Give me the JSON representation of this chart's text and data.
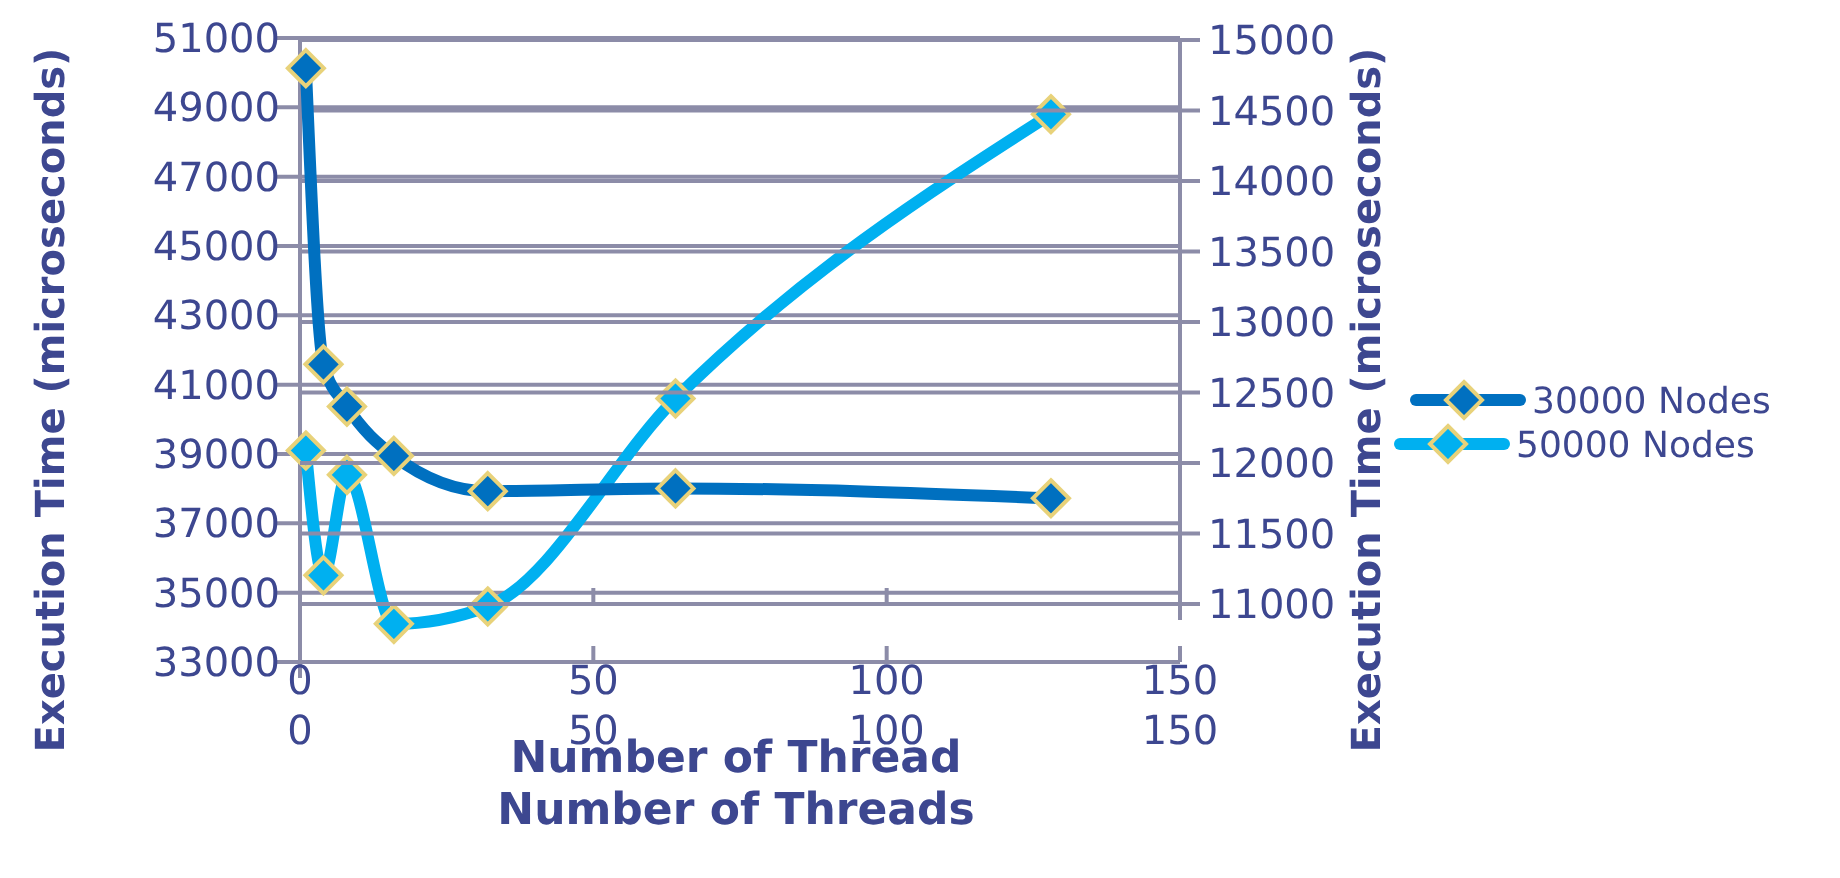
{
  "chart_data": [
    {
      "type": "line",
      "xlabel": "Number of Threads",
      "ylabel": "Execution Time (microseconds)",
      "x": [
        1,
        4,
        8,
        16,
        32,
        64,
        128
      ],
      "series": [
        {
          "name": "50000 Nodes",
          "color": "#00b0f0",
          "values": [
            39100,
            35500,
            38400,
            34100,
            34600,
            40600,
            48800
          ]
        }
      ],
      "xlim": [
        0,
        150
      ],
      "xticks": [
        0,
        50,
        100,
        150
      ],
      "ylim": [
        33000,
        51000
      ],
      "yticks": [
        33000,
        35000,
        37000,
        39000,
        41000,
        43000,
        45000,
        47000,
        49000,
        51000
      ],
      "grid": "y",
      "legend": "right",
      "marker": "diamond"
    },
    {
      "type": "line",
      "xlabel": "Number of Thread",
      "ylabel": "Execution Time (microseconds)",
      "x": [
        1,
        4,
        8,
        16,
        32,
        64,
        128
      ],
      "series": [
        {
          "name": "30000 Nodes",
          "color": "#0070c0",
          "values": [
            14800,
            12700,
            12400,
            12050,
            11800,
            11820,
            11750
          ]
        }
      ],
      "xlim": [
        0,
        150
      ],
      "xticks": [
        0,
        50,
        100,
        150
      ],
      "ylim": [
        11000,
        15000
      ],
      "yticks": [
        11000,
        11500,
        12000,
        12500,
        13000,
        13500,
        14000,
        14500,
        15000
      ],
      "grid": "y",
      "legend": "right",
      "marker": "diamond"
    }
  ]
}
